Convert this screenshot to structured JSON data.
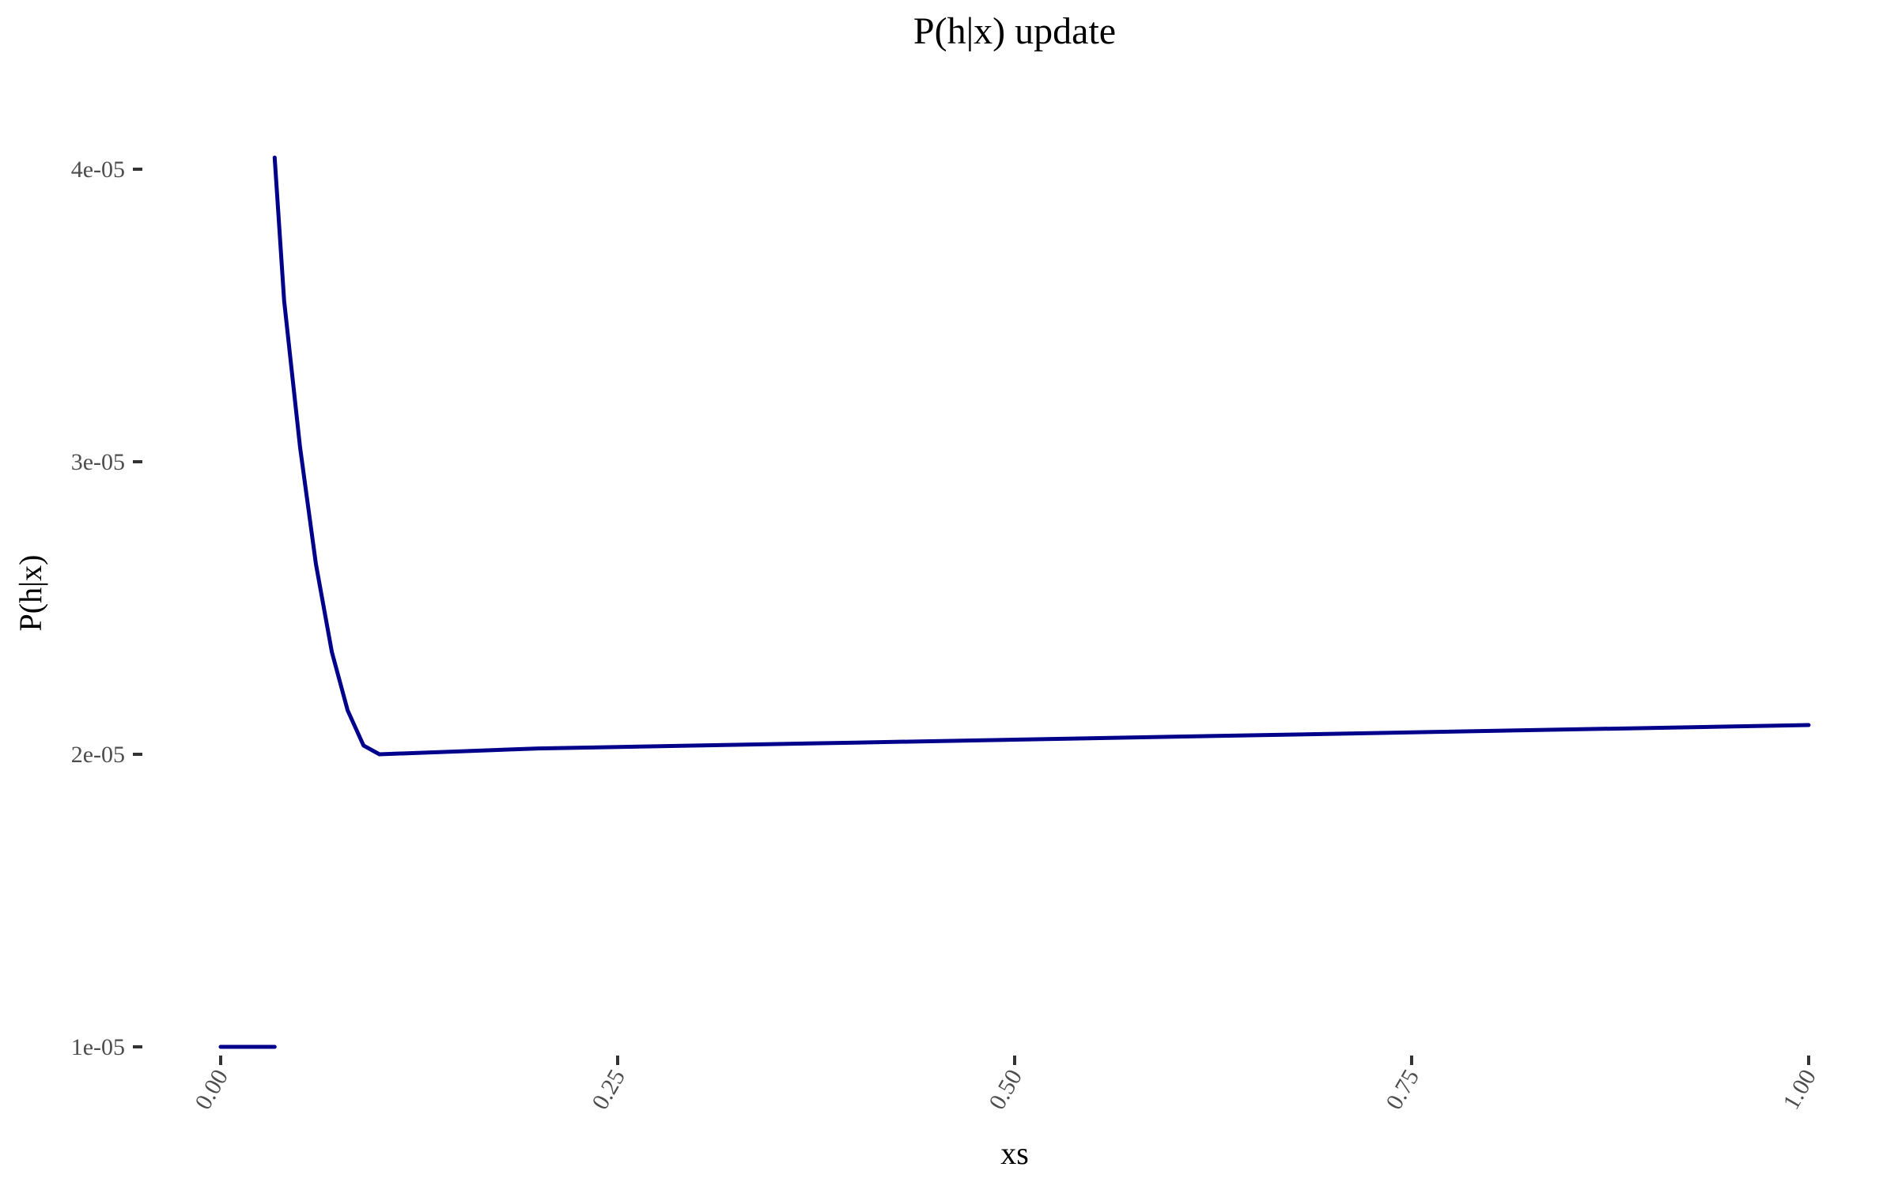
{
  "chart_data": {
    "type": "line",
    "title": "P(h|x) update",
    "xlabel": "xs",
    "ylabel": "P(h|x)",
    "xlim": [
      0,
      1
    ],
    "ylim": [
      8.5e-06,
      4.45e-05
    ],
    "grid": false,
    "x_ticks": [
      0,
      0.25,
      0.5,
      0.75,
      1
    ],
    "x_tick_labels": [
      "0.00",
      "0.25",
      "0.50",
      "0.75",
      "1.00"
    ],
    "y_ticks": [
      1e-05,
      2e-05,
      3e-05,
      4e-05
    ],
    "y_tick_labels": [
      "1e-05",
      "2e-05",
      "3e-05",
      "4e-05"
    ],
    "series": [
      {
        "color": "#00008B",
        "segments": [
          {
            "x": [
              0,
              0.034
            ],
            "y": [
              1e-05,
              1e-05
            ]
          },
          {
            "x": [
              0.034,
              0.04,
              0.05,
              0.06,
              0.07,
              0.08,
              0.09,
              0.1,
              0.2,
              0.3,
              0.4,
              0.5,
              0.6,
              0.7,
              0.8,
              0.9,
              1.0
            ],
            "y": [
              4.04e-05,
              3.55e-05,
              3.05e-05,
              2.65e-05,
              2.35e-05,
              2.15e-05,
              2.03e-05,
              2e-05,
              2.02e-05,
              2.03e-05,
              2.04e-05,
              2.05e-05,
              2.06e-05,
              2.07e-05,
              2.08e-05,
              2.09e-05,
              2.1e-05
            ]
          }
        ]
      }
    ]
  }
}
